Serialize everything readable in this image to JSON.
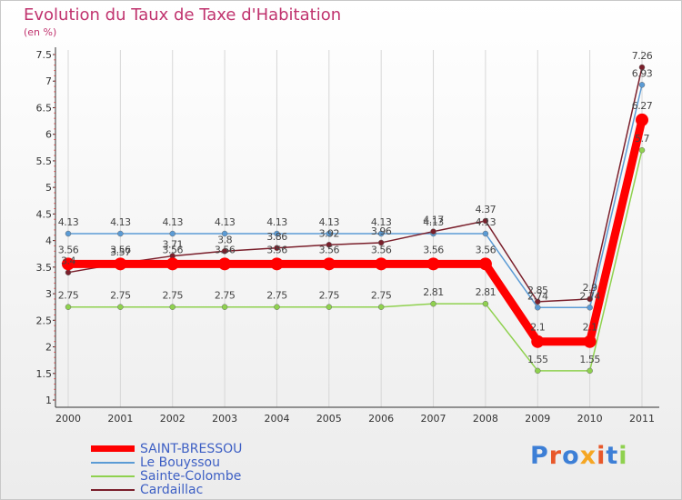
{
  "chart_data": {
    "type": "line",
    "title": "Evolution du Taux de Taxe d'Habitation",
    "unit_label": "(en %)",
    "xlabel": "",
    "ylabel": "",
    "ylim": [
      1,
      7.5
    ],
    "yticks": [
      "1",
      "1.5",
      "2",
      "2.5",
      "3",
      "3.5",
      "4",
      "4.5",
      "5",
      "5.5",
      "6",
      "6.5",
      "7",
      "7.5"
    ],
    "categories": [
      "2000",
      "2001",
      "2002",
      "2003",
      "2004",
      "2005",
      "2006",
      "2007",
      "2008",
      "2009",
      "2010",
      "2011"
    ],
    "series": [
      {
        "name": "Le Bouyssou",
        "color": "#5b9bd5",
        "values": [
          4.13,
          4.13,
          4.13,
          4.13,
          4.13,
          4.13,
          4.13,
          4.13,
          4.13,
          2.74,
          2.74,
          6.93
        ],
        "labels": [
          "4.13",
          "4.13",
          "4.13",
          "4.13",
          "4.13",
          "4.13",
          "4.13",
          "4.13",
          "4.13",
          "2.74",
          "2.74",
          "6.93"
        ]
      },
      {
        "name": "Sainte-Colombe",
        "color": "#8fd14f",
        "values": [
          2.75,
          2.75,
          2.75,
          2.75,
          2.75,
          2.75,
          2.75,
          2.81,
          2.81,
          1.55,
          1.55,
          5.7
        ],
        "labels": [
          "2.75",
          "2.75",
          "2.75",
          "2.75",
          "2.75",
          "2.75",
          "2.75",
          "2.81",
          "2.81",
          "1.55",
          "1.55",
          "5.7"
        ]
      },
      {
        "name": "Cardaillac",
        "color": "#7a1f2b",
        "values": [
          3.4,
          3.57,
          3.71,
          3.8,
          3.86,
          3.92,
          3.96,
          4.17,
          4.37,
          2.85,
          2.9,
          7.26
        ],
        "labels": [
          "3.4",
          "3.57",
          "3.71",
          "3.8",
          "3.86",
          "3.92",
          "3.96",
          "4.17",
          "4.37",
          "2.85",
          "2.9",
          "7.26"
        ]
      },
      {
        "name": "SAINT-BRESSOU",
        "color": "#ff0000",
        "values": [
          3.56,
          3.56,
          3.56,
          3.56,
          3.56,
          3.56,
          3.56,
          3.56,
          3.56,
          2.1,
          2.1,
          6.27
        ],
        "labels": [
          "3.56",
          "3.56",
          "3.56",
          "3.56",
          "3.56",
          "3.56",
          "3.56",
          "3.56",
          "3.56",
          "2.1",
          "2.1",
          "6.27"
        ]
      }
    ],
    "legend": [
      "SAINT-BRESSOU",
      "Le Bouyssou",
      "Sainte-Colombe",
      "Cardaillac"
    ]
  },
  "logo": {
    "text": "Proxiti",
    "letter_colors": [
      "#3d7fd6",
      "#e8582a",
      "#3d7fd6",
      "#f5a623",
      "#e8582a",
      "#3d7fd6",
      "#8fd14f"
    ]
  }
}
